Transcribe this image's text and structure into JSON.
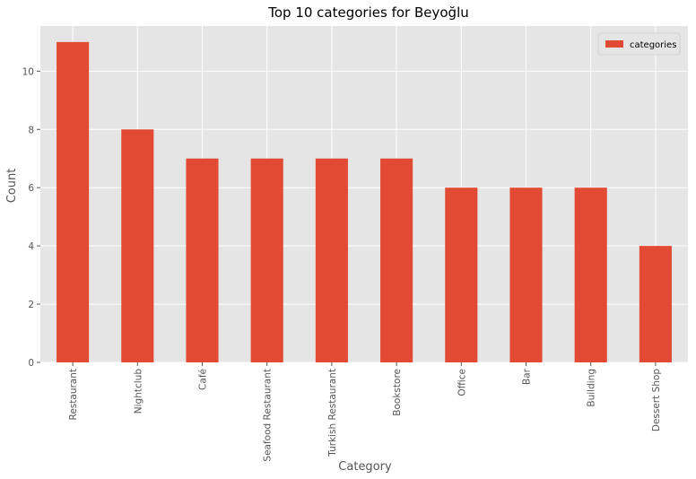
{
  "chart_data": {
    "type": "bar",
    "title": "Top 10 categories for Beyoğlu",
    "xlabel": "Category",
    "ylabel": "Count",
    "categories": [
      "Restaurant",
      "Nightclub",
      "Café",
      "Seafood Restaurant",
      "Turkish Restaurant",
      "Bookstore",
      "Office",
      "Bar",
      "Building",
      "Dessert Shop"
    ],
    "series": [
      {
        "name": "categories",
        "values": [
          11,
          8,
          7,
          7,
          7,
          7,
          6,
          6,
          6,
          4
        ],
        "color": "#E24A33"
      }
    ],
    "ylim": [
      0,
      11.55
    ],
    "yticks": [
      0,
      2,
      4,
      6,
      8,
      10
    ],
    "grid": true,
    "legend_position": "top-right",
    "style": {
      "plot_background": "#E5E5E5",
      "grid_color": "#FFFFFF",
      "text_color": "#555555",
      "title_color": "#000000"
    }
  }
}
